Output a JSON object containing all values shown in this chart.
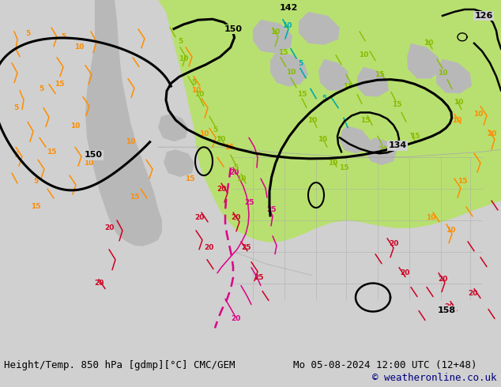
{
  "title_left": "Height/Temp. 850 hPa [gdmp][°C] CMC/GEM",
  "title_right": "Mo 05-08-2024 12:00 UTC (12+48)",
  "copyright": "© weatheronline.co.uk",
  "bg_color": "#d0d0d0",
  "map_ocean_color": "#d0d0d0",
  "land_gray_color": "#b8b8b8",
  "green_fill": "#b8e070",
  "title_fontsize": 9.0,
  "copyright_fontsize": 9.0,
  "copyright_color": "#000080",
  "fig_width": 6.34,
  "fig_height": 4.9,
  "dpi": 100
}
